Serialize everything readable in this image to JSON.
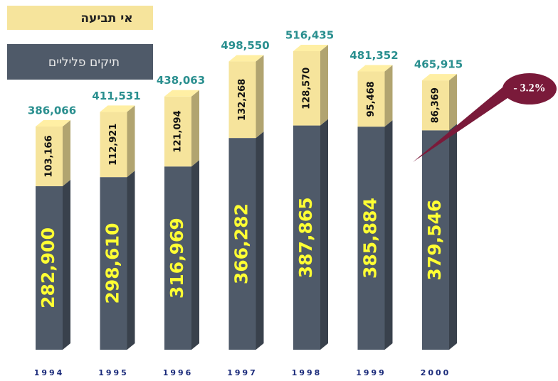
{
  "chart_data": {
    "type": "bar",
    "stacked": true,
    "categories": [
      "1994",
      "1995",
      "1996",
      "1997",
      "1998",
      "1999",
      "2000"
    ],
    "series": [
      {
        "name": "תיקים פליליים",
        "color": "#4f5a69",
        "values": [
          282900,
          298610,
          316969,
          366282,
          387865,
          385884,
          379546
        ],
        "value_labels": [
          "282,900",
          "298,610",
          "316,969",
          "366,282",
          "387,865",
          "385,884",
          "379,546"
        ]
      },
      {
        "name": "אי תביעה",
        "color": "#f6e49c",
        "values": [
          103166,
          112921,
          121094,
          132268,
          128570,
          95468,
          86369
        ],
        "value_labels": [
          "103,166",
          "112,921",
          "121,094",
          "132,268",
          "128,570",
          "95,468",
          "86,369"
        ]
      }
    ],
    "totals": [
      386066,
      411531,
      438063,
      498550,
      516435,
      481352,
      465915
    ],
    "total_labels": [
      "386,066",
      "411,531",
      "438,063",
      "498,550",
      "516,435",
      "481,352",
      "465,915"
    ],
    "annotation": "- 3.2%"
  }
}
